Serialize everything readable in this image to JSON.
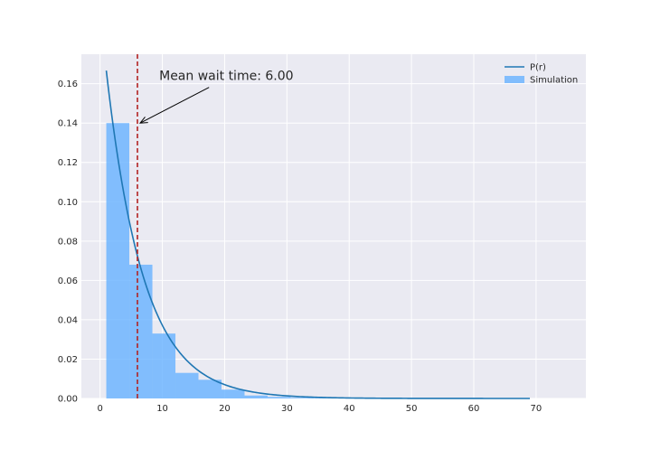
{
  "chart_data": {
    "type": "bar",
    "title": "",
    "xlabel": "",
    "ylabel": "",
    "xlim": [
      -3,
      78
    ],
    "ylim": [
      0,
      0.175
    ],
    "x_ticks": [
      0,
      10,
      20,
      30,
      40,
      50,
      60,
      70
    ],
    "x_tick_labels": [
      "0",
      "10",
      "20",
      "30",
      "40",
      "50",
      "60",
      "70"
    ],
    "y_ticks": [
      0.0,
      0.02,
      0.04,
      0.06,
      0.08,
      0.1,
      0.12,
      0.14,
      0.16
    ],
    "y_tick_labels": [
      "0.00",
      "0.02",
      "0.04",
      "0.06",
      "0.08",
      "0.10",
      "0.12",
      "0.14",
      "0.16"
    ],
    "grid": true,
    "legend_position": "top-right",
    "histogram": {
      "name": "Simulation",
      "color": "#66B2FF",
      "bins": [
        {
          "x0": 1.0,
          "x1": 4.7,
          "value": 0.14
        },
        {
          "x0": 4.7,
          "x1": 8.4,
          "value": 0.068
        },
        {
          "x0": 8.4,
          "x1": 12.1,
          "value": 0.033
        },
        {
          "x0": 12.1,
          "x1": 15.8,
          "value": 0.013
        },
        {
          "x0": 15.8,
          "x1": 19.5,
          "value": 0.0095
        },
        {
          "x0": 19.5,
          "x1": 23.2,
          "value": 0.0045
        },
        {
          "x0": 23.2,
          "x1": 26.9,
          "value": 0.0015
        },
        {
          "x0": 26.9,
          "x1": 30.6,
          "value": 0.0008
        },
        {
          "x0": 30.6,
          "x1": 34.3,
          "value": 0.0004
        },
        {
          "x0": 34.3,
          "x1": 38.0,
          "value": 0.0002
        }
      ]
    },
    "curve": {
      "name": "P(r)",
      "color": "#1f77b4",
      "x_range": [
        1,
        69
      ],
      "formula": "(1/6) * exp(-(x - 1)/6)"
    },
    "mean_line": {
      "x": 6.0,
      "color": "#b22222"
    },
    "annotation": {
      "text": "Mean wait time: 6.00",
      "target": [
        6.0,
        0.14
      ],
      "text_anchor": [
        9.5,
        0.16
      ]
    },
    "legend": [
      {
        "label": "P(r)",
        "kind": "line",
        "color": "#1f77b4"
      },
      {
        "label": "Simulation",
        "kind": "patch",
        "color": "#66B2FF"
      }
    ]
  }
}
